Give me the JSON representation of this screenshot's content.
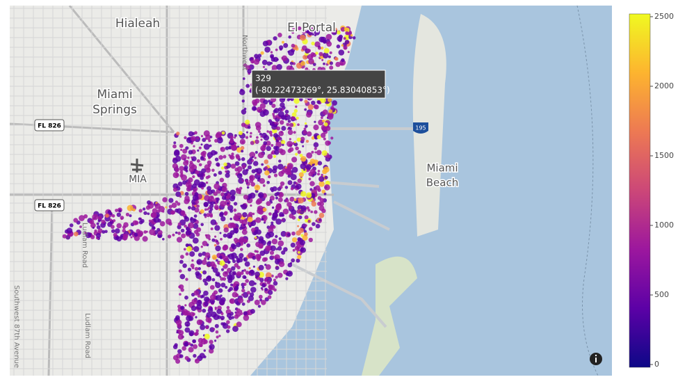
{
  "map": {
    "places": [
      {
        "label": "Hialeah"
      },
      {
        "label": "El Portal"
      },
      {
        "label": "Miami"
      },
      {
        "label": "Springs"
      },
      {
        "label": "MIA"
      },
      {
        "label": "Miami"
      },
      {
        "label": "Beach"
      }
    ],
    "roads": [
      {
        "label": "Northwest"
      },
      {
        "label": "Ludlam Road"
      },
      {
        "label": "Ludlam Road"
      },
      {
        "label": "Southwest 87th Avenue"
      }
    ],
    "shields": [
      {
        "label": "FL 826"
      },
      {
        "label": "FL 826"
      },
      {
        "label": "195"
      }
    ]
  },
  "tooltip": {
    "value": 329,
    "coords": "(-80.22473269°, 25.83040853°)"
  },
  "colorbar": {
    "range": [
      0,
      2500
    ],
    "ticks": [
      0,
      500,
      1000,
      1500,
      2000,
      2500
    ],
    "colors": [
      "#0d0887",
      "#5c01a6",
      "#9c179e",
      "#cc4778",
      "#ed7953",
      "#fdb42f",
      "#f0f921"
    ]
  }
}
